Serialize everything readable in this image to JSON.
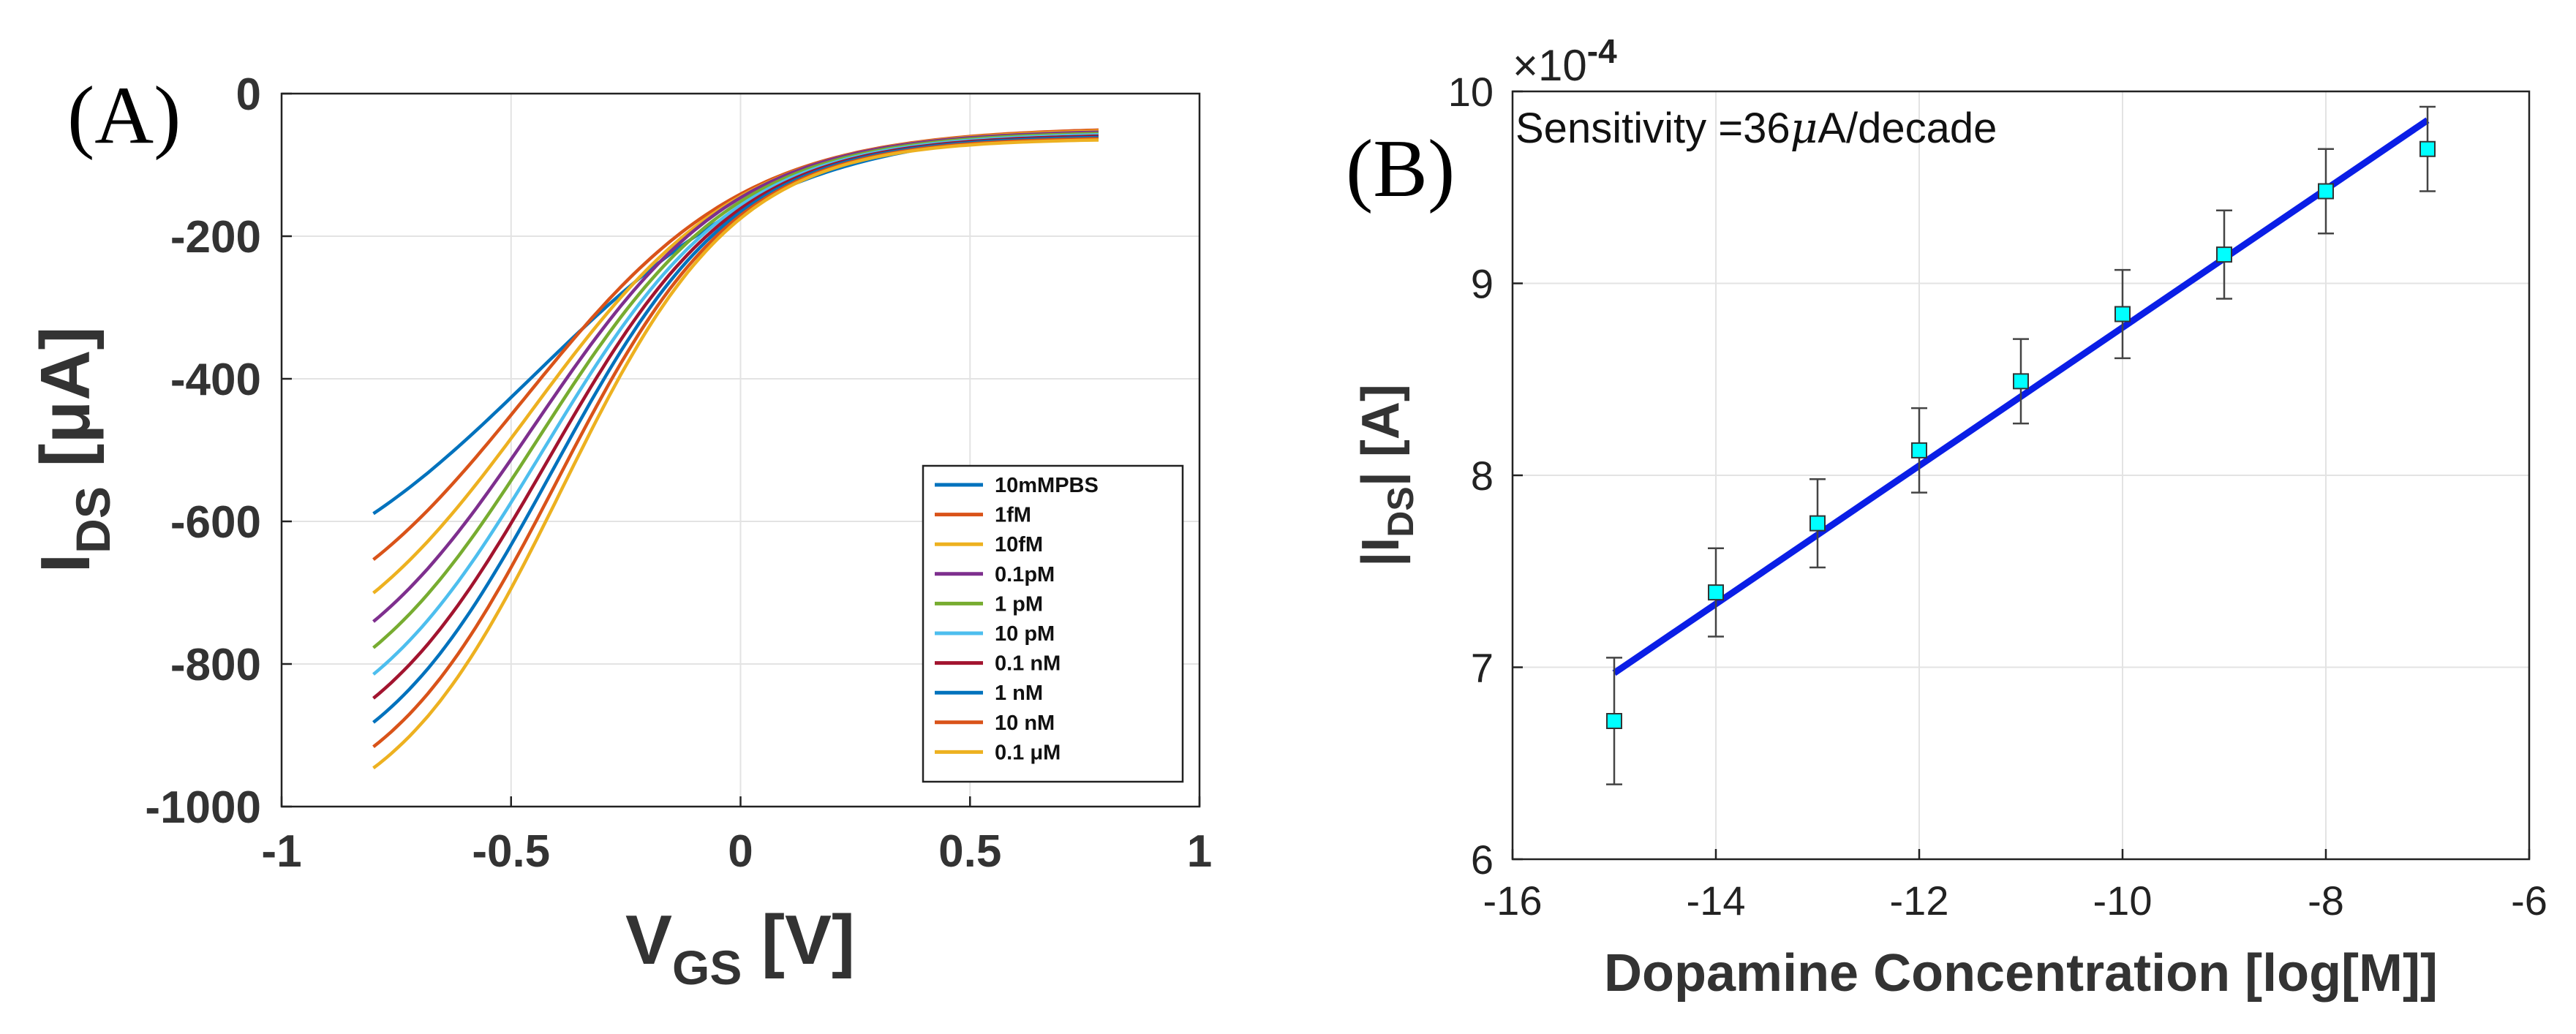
{
  "chart_data": [
    {
      "type": "line",
      "panel_label": "(A)",
      "xlabel": "V",
      "xlabel_sub": "GS",
      "xlabel_unit": " [V]",
      "ylabel": "I",
      "ylabel_sub": "DS",
      "ylabel_unit": " [μA]",
      "xlim": [
        -1,
        1
      ],
      "ylim": [
        -1000,
        0
      ],
      "x_ticks": [
        -1,
        -0.5,
        0,
        0.5,
        1
      ],
      "x_tick_labels": [
        "-1",
        "-0.5",
        "0",
        "0.5",
        "1"
      ],
      "y_ticks": [
        0,
        -200,
        -400,
        -600,
        -800,
        -1000
      ],
      "y_tick_labels": [
        "0",
        "-200",
        "-400",
        "-600",
        "-800",
        "-1000"
      ],
      "grid": true,
      "legend_position": "bottom-right",
      "x_domain": [
        -0.8,
        0.78
      ],
      "series": [
        {
          "name": "10mMPBS",
          "color": "#0072BD",
          "params": {
            "a": 700,
            "x0": -0.45,
            "s": 0.28,
            "b": 45
          }
        },
        {
          "name": "1fM",
          "color": "#D95319",
          "params": {
            "a": 760,
            "x0": -0.47,
            "s": 0.24,
            "b": 47
          }
        },
        {
          "name": "10fM",
          "color": "#EDB120",
          "params": {
            "a": 800,
            "x0": -0.46,
            "s": 0.23,
            "b": 49
          }
        },
        {
          "name": "0.1pM",
          "color": "#7E2F8E",
          "params": {
            "a": 830,
            "x0": -0.45,
            "s": 0.22,
            "b": 51
          }
        },
        {
          "name": "1 pM",
          "color": "#77AC30",
          "params": {
            "a": 860,
            "x0": -0.44,
            "s": 0.215,
            "b": 53
          }
        },
        {
          "name": "10 pM",
          "color": "#4DBEEE",
          "params": {
            "a": 890,
            "x0": -0.43,
            "s": 0.21,
            "b": 55
          }
        },
        {
          "name": "0.1 nM",
          "color": "#A2142F",
          "params": {
            "a": 915,
            "x0": -0.42,
            "s": 0.205,
            "b": 57
          }
        },
        {
          "name": "1 nM",
          "color": "#0072BD",
          "params": {
            "a": 940,
            "x0": -0.41,
            "s": 0.2,
            "b": 59
          }
        },
        {
          "name": "10 nM",
          "color": "#D95319",
          "params": {
            "a": 965,
            "x0": -0.4,
            "s": 0.195,
            "b": 61
          }
        },
        {
          "name": "0.1 μM",
          "color": "#EDB120",
          "params": {
            "a": 985,
            "x0": -0.39,
            "s": 0.19,
            "b": 63
          }
        }
      ]
    },
    {
      "type": "scatter",
      "panel_label": "(B)",
      "xlabel": "Dopamine Concentration [log[M]]",
      "ylabel_prefix": "|I",
      "ylabel_sub": "DS",
      "ylabel_suffix": "| [A]",
      "exponent_base": "×10",
      "exponent_power": "-4",
      "annotation_prefix": "Sensitivity =36",
      "annotation_mu": "μ",
      "annotation_suffix": "A/decade",
      "xlim": [
        -16,
        -6
      ],
      "ylim": [
        6,
        10
      ],
      "x_ticks": [
        -16,
        -14,
        -12,
        -10,
        -8,
        -6
      ],
      "x_tick_labels": [
        "-16",
        "-14",
        "-12",
        "-10",
        "-8",
        "-6"
      ],
      "y_ticks": [
        6,
        7,
        8,
        9,
        10
      ],
      "y_tick_labels": [
        "6",
        "7",
        "8",
        "9",
        "10"
      ],
      "grid": true,
      "marker_color": "#00FFFF",
      "fit_color": "#0A1EE6",
      "x": [
        -15,
        -14,
        -13,
        -12,
        -11,
        -10,
        -9,
        -8,
        -7
      ],
      "y": [
        6.72,
        7.39,
        7.75,
        8.13,
        8.49,
        8.84,
        9.15,
        9.48,
        9.7
      ],
      "err": [
        0.33,
        0.23,
        0.23,
        0.22,
        0.22,
        0.23,
        0.23,
        0.22,
        0.22
      ],
      "fit_line": {
        "x": [
          -15,
          -7
        ],
        "y": [
          6.97,
          9.85
        ]
      }
    }
  ]
}
